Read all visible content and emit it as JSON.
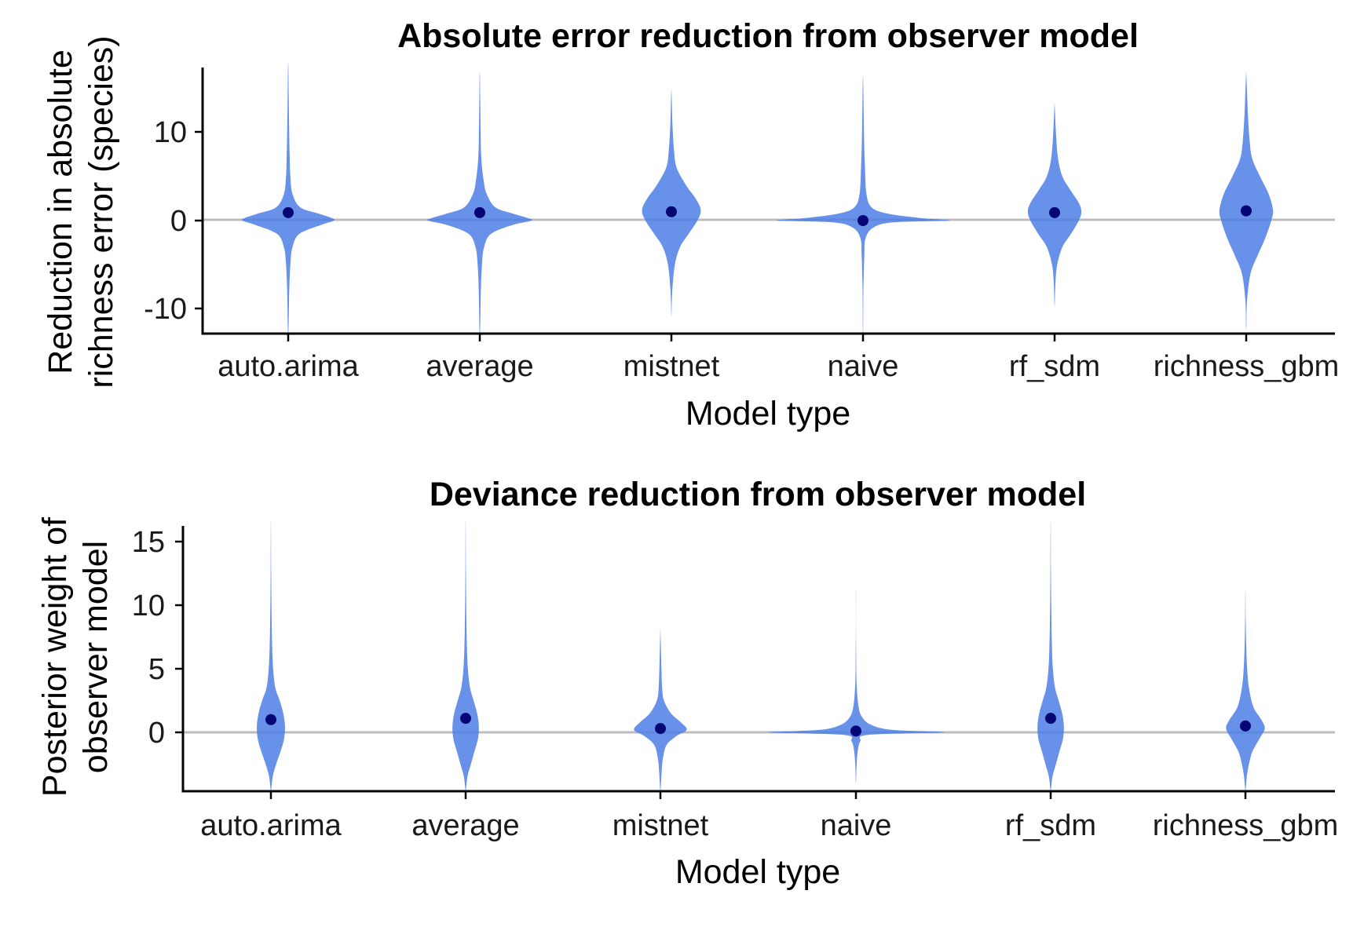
{
  "colors": {
    "violin": "#4d7ee6",
    "point": "#050575",
    "zero_line": "#bdbdbd",
    "axis": "#000000"
  },
  "chart_data": [
    {
      "type": "violin",
      "title": "Absolute error reduction from observer model",
      "xlabel": "Model type",
      "ylabel": [
        "Reduction in absolute",
        "richness error (species)"
      ],
      "ylim": [
        -12.5,
        17.5
      ],
      "yticks": [
        10,
        0,
        -10
      ],
      "ytick_labels": [
        "10",
        "0",
        "-10"
      ],
      "categories": [
        "auto.arima",
        "average",
        "mistnet",
        "naive",
        "rf_sdm",
        "richness_gbm"
      ],
      "series": [
        {
          "name": "auto.arima",
          "mean": 0.9,
          "min": -12.5,
          "max": 17.5,
          "profile": [
            [
              -12.5,
              0.4
            ],
            [
              -8,
              1.2
            ],
            [
              -5,
              2.5
            ],
            [
              -3,
              5
            ],
            [
              -1.5,
              13
            ],
            [
              -0.5,
              38
            ],
            [
              0,
              53
            ],
            [
              0.3,
              50
            ],
            [
              0.8,
              35
            ],
            [
              1.5,
              14
            ],
            [
              3,
              5
            ],
            [
              5,
              2.5
            ],
            [
              7,
              1.8
            ],
            [
              10,
              1.2
            ],
            [
              14,
              0.6
            ],
            [
              17.5,
              0.2
            ]
          ]
        },
        {
          "name": "average",
          "mean": 0.9,
          "min": -12.5,
          "max": 16.5,
          "profile": [
            [
              -12.5,
              0.4
            ],
            [
              -8,
              1.2
            ],
            [
              -5,
              2.5
            ],
            [
              -3,
              5
            ],
            [
              -1.5,
              13
            ],
            [
              -0.5,
              38
            ],
            [
              0,
              60
            ],
            [
              0.3,
              55
            ],
            [
              0.8,
              38
            ],
            [
              1.5,
              18
            ],
            [
              3,
              8
            ],
            [
              4.5,
              4.5
            ],
            [
              7,
              1.8
            ],
            [
              10,
              1
            ],
            [
              14,
              0.5
            ],
            [
              16.5,
              0.2
            ]
          ]
        },
        {
          "name": "mistnet",
          "mean": 1.0,
          "min": -10.5,
          "max": 14.5,
          "profile": [
            [
              -10.5,
              0.2
            ],
            [
              -8,
              1
            ],
            [
              -5,
              4
            ],
            [
              -3,
              10
            ],
            [
              -1.5,
              20
            ],
            [
              0,
              30
            ],
            [
              1.2,
              34
            ],
            [
              2.5,
              28
            ],
            [
              4,
              17
            ],
            [
              6,
              6
            ],
            [
              8,
              3
            ],
            [
              11,
              1.2
            ],
            [
              14.5,
              0.2
            ]
          ]
        },
        {
          "name": "naive",
          "mean": 0.0,
          "min": -12.5,
          "max": 16.0,
          "profile": [
            [
              -12.5,
              0.2
            ],
            [
              -8,
              0.5
            ],
            [
              -4,
              1.5
            ],
            [
              -2,
              3
            ],
            [
              -0.8,
              12
            ],
            [
              -0.2,
              35
            ],
            [
              0,
              100
            ],
            [
              0.3,
              65
            ],
            [
              0.8,
              28
            ],
            [
              1.5,
              10
            ],
            [
              3,
              4
            ],
            [
              6,
              2.3
            ],
            [
              9,
              1.3
            ],
            [
              12,
              0.8
            ],
            [
              16,
              0.2
            ]
          ]
        },
        {
          "name": "rf_sdm",
          "mean": 0.9,
          "min": -9.5,
          "max": 13.0,
          "profile": [
            [
              -9.5,
              0.2
            ],
            [
              -7,
              1
            ],
            [
              -5,
              3
            ],
            [
              -3,
              9
            ],
            [
              -1.5,
              19
            ],
            [
              0,
              28
            ],
            [
              1,
              31
            ],
            [
              2,
              28
            ],
            [
              3.5,
              18
            ],
            [
              5,
              9
            ],
            [
              7,
              4
            ],
            [
              10,
              1.5
            ],
            [
              13,
              0.2
            ]
          ]
        },
        {
          "name": "richness_gbm",
          "mean": 1.1,
          "min": -12.0,
          "max": 16.5,
          "profile": [
            [
              -12,
              0.2
            ],
            [
              -9,
              1
            ],
            [
              -6,
              5
            ],
            [
              -4,
              13
            ],
            [
              -2,
              22
            ],
            [
              0,
              29
            ],
            [
              1.2,
              31
            ],
            [
              3,
              26
            ],
            [
              5,
              16
            ],
            [
              7,
              7
            ],
            [
              9,
              4
            ],
            [
              12,
              2
            ],
            [
              16.5,
              0.2
            ]
          ]
        }
      ]
    },
    {
      "type": "violin",
      "title": "Deviance reduction from observer model",
      "xlabel": "Model type",
      "ylabel": [
        "Posterior weight of",
        "observer model"
      ],
      "ylim": [
        -4.6,
        16.3
      ],
      "yticks": [
        15,
        10,
        5,
        0
      ],
      "ytick_labels": [
        "15",
        "10",
        "5",
        "0"
      ],
      "categories": [
        "auto.arima",
        "average",
        "mistnet",
        "naive",
        "rf_sdm",
        "richness_gbm"
      ],
      "series": [
        {
          "name": "auto.arima",
          "mean": 1.0,
          "min": -4.6,
          "max": 16.3,
          "profile": [
            [
              -4.6,
              0.2
            ],
            [
              -3.5,
              2
            ],
            [
              -2.5,
              6
            ],
            [
              -1.5,
              11
            ],
            [
              -0.5,
              15
            ],
            [
              0.5,
              16
            ],
            [
              1.5,
              14
            ],
            [
              2.5,
              10
            ],
            [
              3.5,
              5
            ],
            [
              5,
              2.5
            ],
            [
              7,
              1.3
            ],
            [
              10,
              0.6
            ],
            [
              13,
              0.3
            ],
            [
              16.3,
              0.1
            ]
          ]
        },
        {
          "name": "average",
          "mean": 1.1,
          "min": -4.6,
          "max": 16.3,
          "profile": [
            [
              -4.6,
              0.2
            ],
            [
              -3.5,
              2
            ],
            [
              -2.5,
              6
            ],
            [
              -1.5,
              10
            ],
            [
              -0.5,
              14
            ],
            [
              0.5,
              15
            ],
            [
              1.5,
              13
            ],
            [
              2.5,
              9
            ],
            [
              3.5,
              5
            ],
            [
              5,
              2.5
            ],
            [
              7,
              1.3
            ],
            [
              10,
              0.6
            ],
            [
              13,
              0.3
            ],
            [
              16.3,
              0.1
            ]
          ]
        },
        {
          "name": "mistnet",
          "mean": 0.3,
          "min": -4.6,
          "max": 8.0,
          "profile": [
            [
              -4.6,
              0.2
            ],
            [
              -3,
              1.5
            ],
            [
              -2,
              3
            ],
            [
              -1,
              7
            ],
            [
              -0.3,
              18
            ],
            [
              0.2,
              30
            ],
            [
              0.8,
              23
            ],
            [
              1.5,
              12
            ],
            [
              2.5,
              4
            ],
            [
              3.5,
              2
            ],
            [
              5,
              1.2
            ],
            [
              6.5,
              0.6
            ],
            [
              8,
              0.1
            ]
          ]
        },
        {
          "name": "naive",
          "mean": 0.1,
          "min": -4.0,
          "max": 11.0,
          "profile": [
            [
              -4,
              0.1
            ],
            [
              -2.5,
              0.8
            ],
            [
              -1.5,
              2
            ],
            [
              -0.7,
              5
            ],
            [
              -0.2,
              14
            ],
            [
              0,
              100
            ],
            [
              0.2,
              40
            ],
            [
              0.6,
              17
            ],
            [
              1.2,
              7
            ],
            [
              2,
              3
            ],
            [
              3.5,
              1
            ],
            [
              5,
              0.4
            ],
            [
              8,
              0.1
            ],
            [
              11,
              0.05
            ]
          ]
        },
        {
          "name": "rf_sdm",
          "mean": 1.1,
          "min": -4.6,
          "max": 16.3,
          "profile": [
            [
              -4.6,
              0.2
            ],
            [
              -3.5,
              2
            ],
            [
              -2.5,
              6
            ],
            [
              -1.5,
              10
            ],
            [
              -0.5,
              14
            ],
            [
              0.5,
              15
            ],
            [
              1.5,
              13
            ],
            [
              2.5,
              9
            ],
            [
              3.5,
              5
            ],
            [
              5,
              2.5
            ],
            [
              7,
              1.3
            ],
            [
              10,
              0.6
            ],
            [
              13,
              0.3
            ],
            [
              16.3,
              0.1
            ]
          ]
        },
        {
          "name": "richness_gbm",
          "mean": 0.5,
          "min": -4.6,
          "max": 11.0,
          "profile": [
            [
              -4.6,
              0.2
            ],
            [
              -3.5,
              1.5
            ],
            [
              -2.5,
              4
            ],
            [
              -1.5,
              8
            ],
            [
              -0.5,
              16
            ],
            [
              0.3,
              22
            ],
            [
              1,
              18
            ],
            [
              2,
              9
            ],
            [
              3.5,
              4
            ],
            [
              5,
              2
            ],
            [
              7,
              0.8
            ],
            [
              9,
              0.3
            ],
            [
              11,
              0.1
            ]
          ]
        }
      ]
    }
  ]
}
